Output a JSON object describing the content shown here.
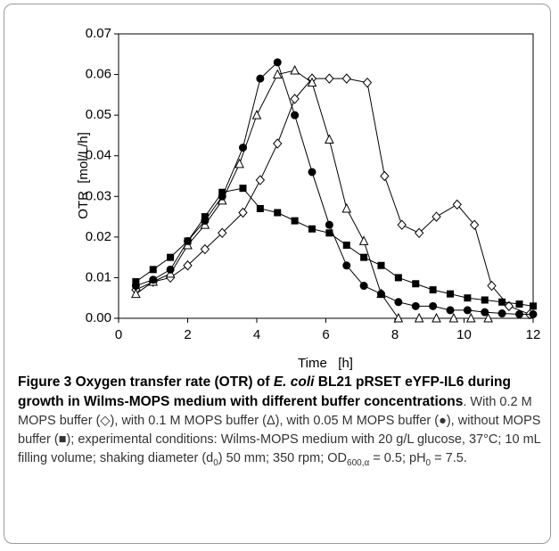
{
  "chart_data": {
    "type": "line",
    "x_label": "Time   [h]",
    "y_label": "OTR  [mol/L/h]",
    "xlim": [
      0,
      12
    ],
    "xticks": [
      0,
      2,
      4,
      6,
      8,
      10,
      12
    ],
    "ylim": [
      0,
      0.07
    ],
    "yticks": [
      {
        "value": 0,
        "label": "0.00"
      },
      {
        "value": 0.01,
        "label": "0.01"
      },
      {
        "value": 0.02,
        "label": "0.02"
      },
      {
        "value": 0.03,
        "label": "0.03"
      },
      {
        "value": 0.04,
        "label": "0.04"
      },
      {
        "value": 0.05,
        "label": "0.05"
      },
      {
        "value": 0.06,
        "label": "0.06"
      },
      {
        "value": 0.07,
        "label": "0.07"
      }
    ],
    "series": [
      {
        "marker": "open-diamond",
        "color": "#000000",
        "x": [
          0.5,
          1,
          1.5,
          2,
          2.5,
          3,
          3.6,
          4.1,
          4.6,
          5.1,
          5.6,
          6.1,
          6.6,
          7.2,
          7.7,
          8.2,
          8.7,
          9.2,
          9.8,
          10.3,
          10.8,
          11.3,
          11.9
        ],
        "values": [
          0.007,
          0.009,
          0.01,
          0.013,
          0.017,
          0.021,
          0.026,
          0.034,
          0.043,
          0.054,
          0.059,
          0.059,
          0.059,
          0.058,
          0.035,
          0.023,
          0.021,
          0.025,
          0.028,
          0.023,
          0.008,
          0.003,
          0.001
        ]
      },
      {
        "marker": "open-triangle",
        "color": "#000000",
        "x": [
          0.5,
          1,
          1.5,
          2,
          2.5,
          3,
          3.5,
          4,
          4.6,
          5.1,
          5.6,
          6.1,
          6.6,
          7.1,
          7.6,
          8.1,
          8.7,
          9.2,
          9.7,
          10.2,
          10.7
        ],
        "values": [
          0.006,
          0.009,
          0.011,
          0.018,
          0.023,
          0.029,
          0.038,
          0.05,
          0.06,
          0.061,
          0.058,
          0.044,
          0.027,
          0.019,
          0.006,
          0,
          0,
          0,
          0,
          0,
          0
        ]
      },
      {
        "marker": "filled-circle",
        "color": "#000000",
        "x": [
          0.5,
          1,
          1.5,
          2,
          2.5,
          3,
          3.6,
          4.1,
          4.6,
          5.1,
          5.6,
          6.1,
          6.6,
          7.1,
          7.6,
          8.1,
          8.6,
          9.1,
          9.6,
          10.1,
          10.6,
          11.1,
          11.6,
          12
        ],
        "values": [
          0.008,
          0.0095,
          0.012,
          0.019,
          0.024,
          0.03,
          0.042,
          0.059,
          0.063,
          0.05,
          0.036,
          0.023,
          0.013,
          0.008,
          0.006,
          0.004,
          0.003,
          0.003,
          0.002,
          0.002,
          0.0015,
          0.0012,
          0.001,
          0.001
        ]
      },
      {
        "marker": "filled-square",
        "color": "#000000",
        "x": [
          0.5,
          1,
          1.5,
          2,
          2.5,
          3,
          3.6,
          4.1,
          4.6,
          5.1,
          5.6,
          6.1,
          6.6,
          7.1,
          7.6,
          8.1,
          8.6,
          9.1,
          9.6,
          10.1,
          10.6,
          11.1,
          11.6,
          12
        ],
        "values": [
          0.009,
          0.012,
          0.015,
          0.019,
          0.025,
          0.031,
          0.032,
          0.027,
          0.026,
          0.024,
          0.022,
          0.021,
          0.018,
          0.015,
          0.013,
          0.01,
          0.0085,
          0.007,
          0.006,
          0.005,
          0.0045,
          0.004,
          0.0035,
          0.003
        ]
      }
    ],
    "caption": [
      "Figure 3 Oxygen transfer rate (OTR) of ",
      "E. coli",
      " BL21 pRSET eYFP-IL6 during growth in Wilms-MOPS medium with different buffer concentrations",
      ". With 0.2 M MOPS buffer (◇), with 0.1 M MOPS buffer (Δ), with 0.05 M MOPS buffer (●), without MOPS buffer (■); experimental conditions: Wilms-MOPS medium with 20 g/L glucose, 37°C; 10 mL filling volume; shaking diameter (d",
      "0",
      ") 50 mm; 350 rpm; OD",
      "600,α",
      " = 0.5; pH",
      "0",
      " = 7.5."
    ]
  }
}
